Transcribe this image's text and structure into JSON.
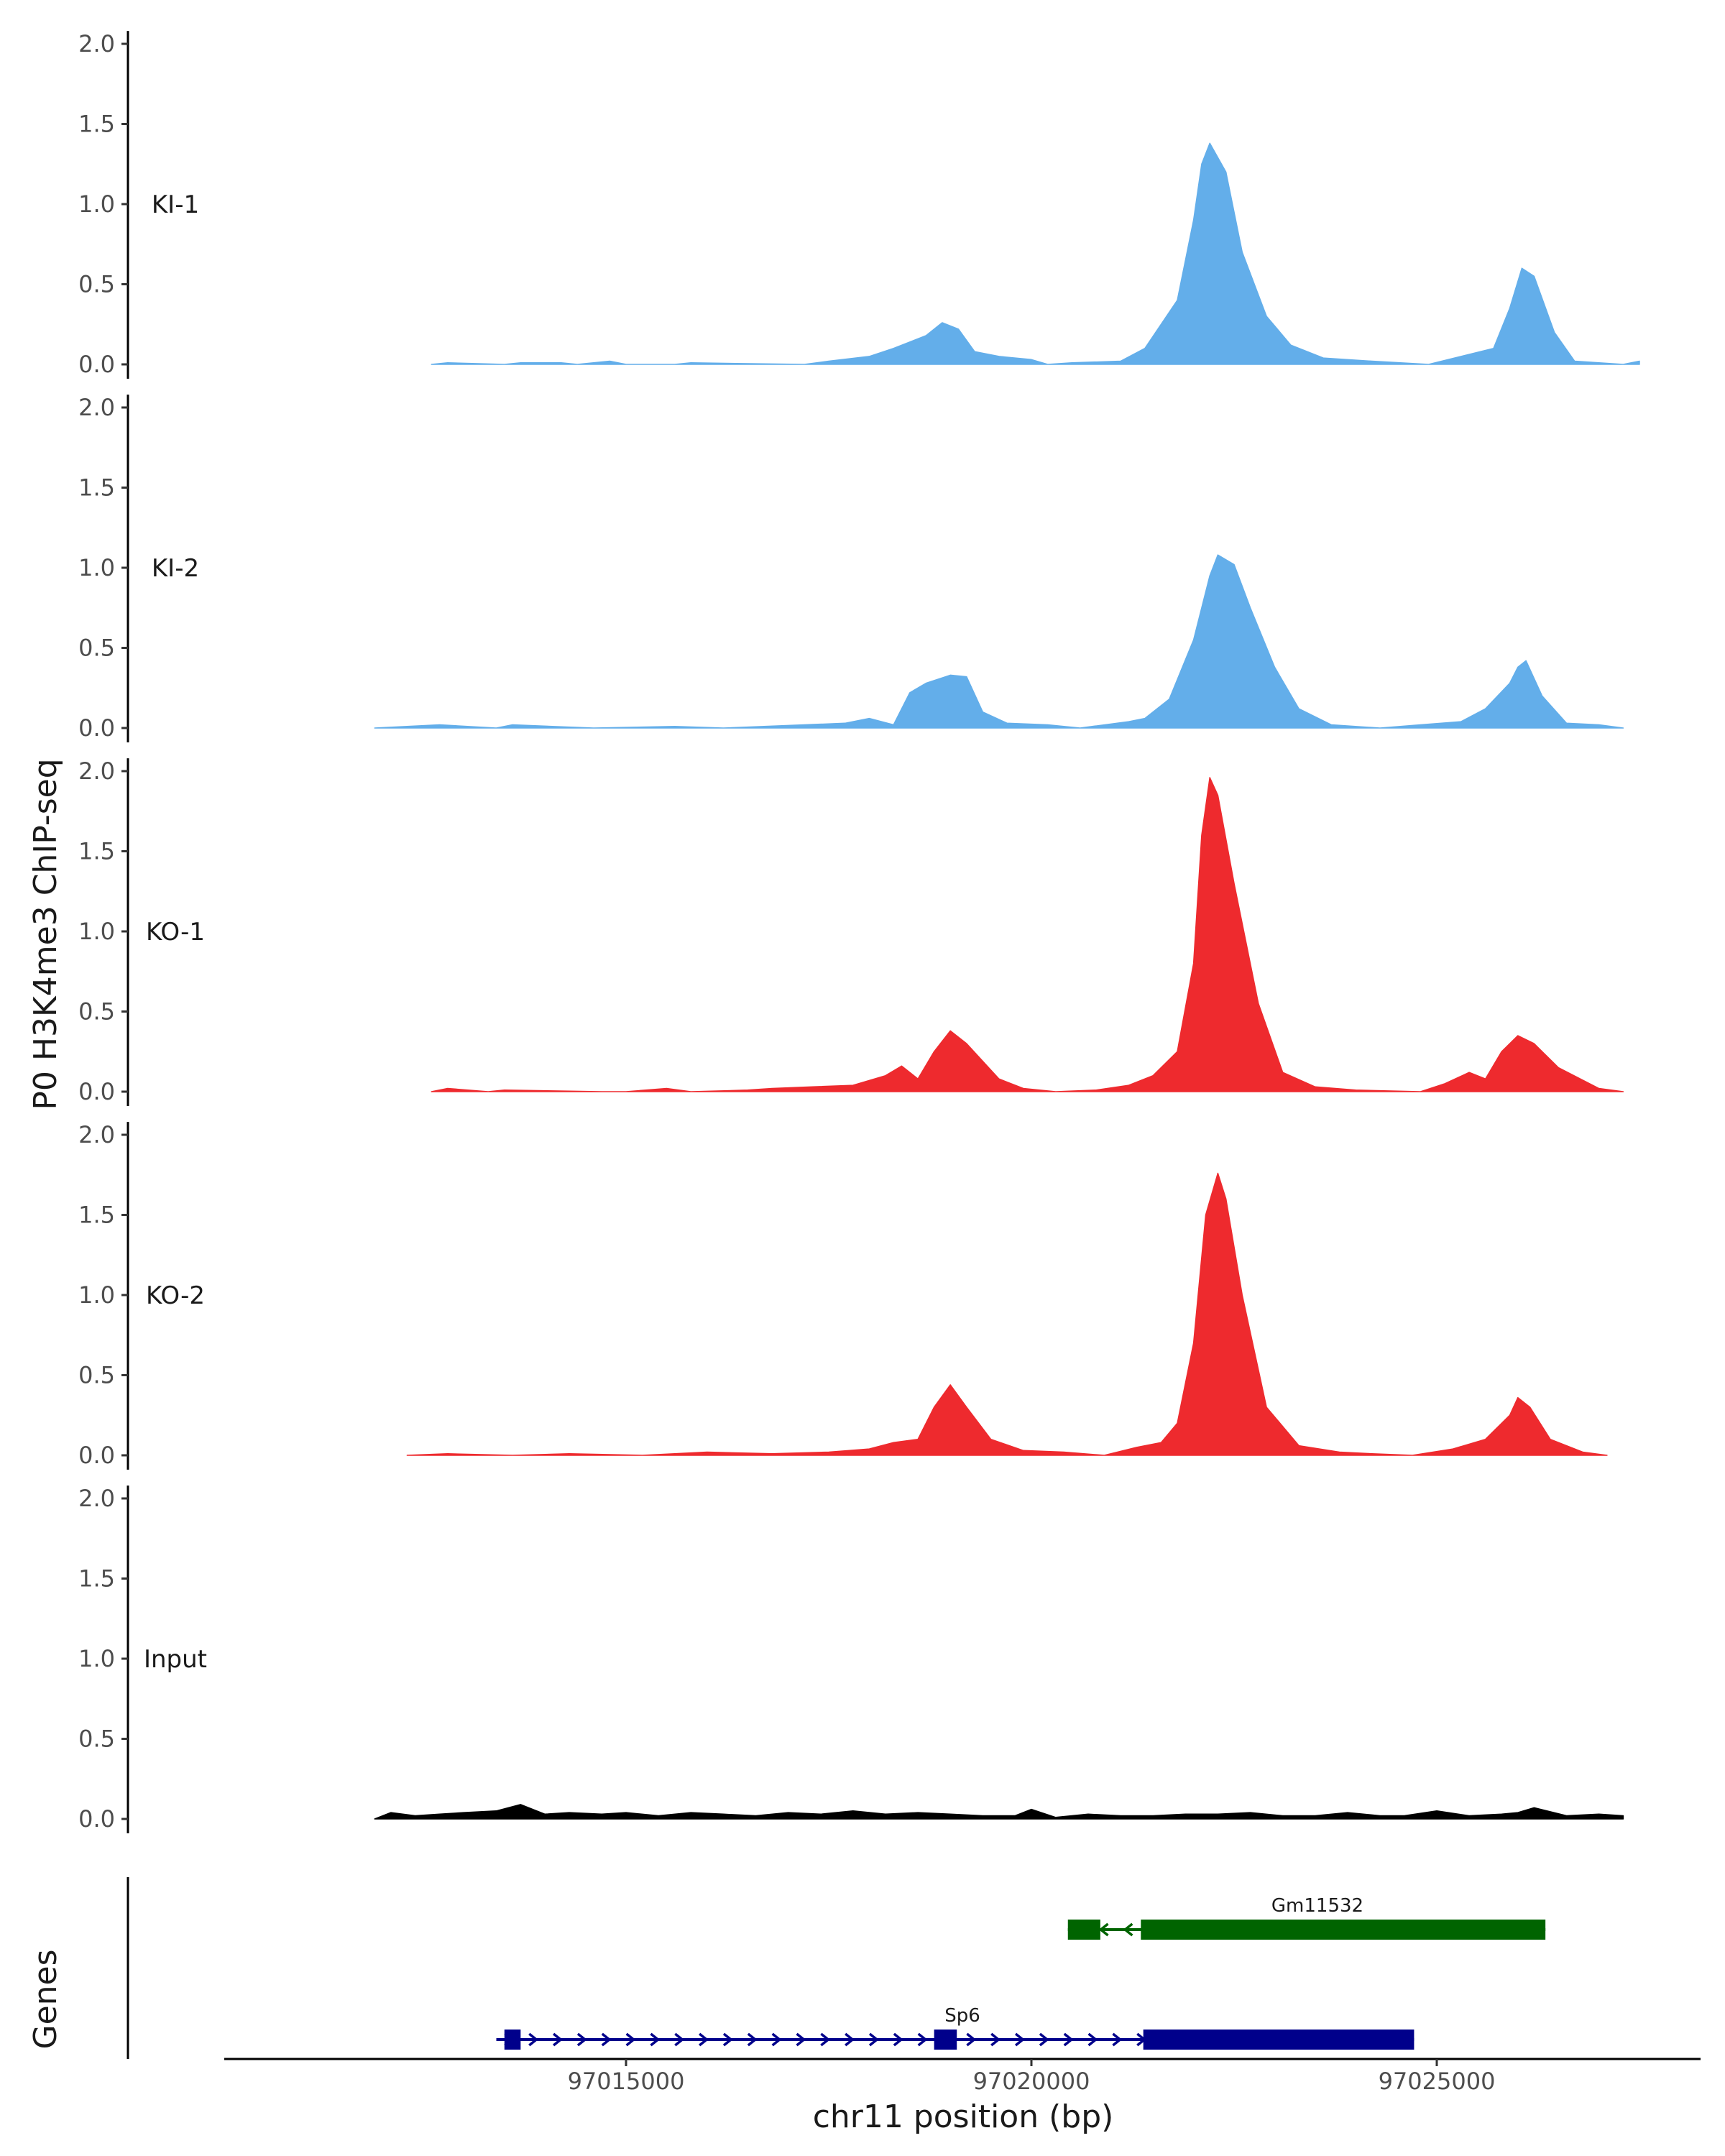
{
  "chart_data": {
    "type": "area",
    "title": "",
    "ylabel": "P0 H3K4me3 ChIP-seq",
    "xlabel": "chr11 position (bp)",
    "genes_label": "Genes",
    "xlim": [
      97010500,
      97028500
    ],
    "ylim": [
      0,
      2.0
    ],
    "yticks": [
      "0.0",
      "0.5",
      "1.0",
      "1.5",
      "2.0"
    ],
    "xticks": [
      97015000,
      97020000,
      97025000
    ],
    "xtick_labels": [
      "97015000",
      "97020000",
      "97025000"
    ],
    "colors": {
      "KI": "#63aeea",
      "KO": "#ee2a2e",
      "Input": "#000000",
      "gene_sp6": "#00008b",
      "gene_gm": "#006400"
    },
    "tracks": [
      {
        "name": "KI-1",
        "color": "#63aeea",
        "x": [
          97012600,
          97012800,
          97013500,
          97013700,
          97014200,
          97014400,
          97014800,
          97015000,
          97015600,
          97015800,
          97017200,
          97017500,
          97018000,
          97018300,
          97018700,
          97018900,
          97019100,
          97019300,
          97019600,
          97020000,
          97020200,
          97020500,
          97021100,
          97021400,
          97021800,
          97022000,
          97022100,
          97022200,
          97022400,
          97022600,
          97022900,
          97023200,
          97023600,
          97024200,
          97024900,
          97025300,
          97025700,
          97025900,
          97026050,
          97026200,
          97026450,
          97026700,
          97027300,
          97027500
        ],
        "y": [
          0.0,
          0.01,
          0.0,
          0.01,
          0.01,
          0.0,
          0.02,
          0.0,
          0.0,
          0.01,
          0.0,
          0.02,
          0.05,
          0.1,
          0.18,
          0.26,
          0.22,
          0.08,
          0.05,
          0.03,
          0.0,
          0.01,
          0.02,
          0.1,
          0.4,
          0.9,
          1.25,
          1.38,
          1.2,
          0.7,
          0.3,
          0.12,
          0.04,
          0.02,
          0.0,
          0.05,
          0.1,
          0.35,
          0.6,
          0.55,
          0.2,
          0.02,
          0.0,
          0.02
        ]
      },
      {
        "name": "KI-2",
        "color": "#63aeea",
        "x": [
          97011900,
          97012300,
          97012700,
          97013400,
          97013600,
          97014600,
          97015600,
          97016200,
          97017200,
          97017700,
          97018000,
          97018300,
          97018500,
          97018700,
          97019000,
          97019200,
          97019400,
          97019700,
          97020200,
          97020600,
          97021200,
          97021400,
          97021700,
          97022000,
          97022200,
          97022300,
          97022500,
          97022700,
          97023000,
          97023300,
          97023700,
          97024300,
          97024800,
          97025300,
          97025600,
          97025900,
          97026000,
          97026100,
          97026300,
          97026600,
          97027000,
          97027300
        ],
        "y": [
          0.0,
          0.01,
          0.02,
          0.0,
          0.02,
          0.0,
          0.01,
          0.0,
          0.02,
          0.03,
          0.06,
          0.02,
          0.22,
          0.28,
          0.33,
          0.32,
          0.1,
          0.03,
          0.02,
          0.0,
          0.04,
          0.06,
          0.18,
          0.55,
          0.95,
          1.08,
          1.02,
          0.75,
          0.38,
          0.12,
          0.02,
          0.0,
          0.02,
          0.04,
          0.12,
          0.28,
          0.38,
          0.42,
          0.2,
          0.03,
          0.02,
          0.0
        ]
      },
      {
        "name": "KO-1",
        "color": "#ee2a2e",
        "x": [
          97012600,
          97012800,
          97013300,
          97013500,
          97014700,
          97015000,
          97015500,
          97015800,
          97016500,
          97016800,
          97017300,
          97017800,
          97018200,
          97018400,
          97018600,
          97018800,
          97019000,
          97019200,
          97019600,
          97019900,
          97020300,
          97020800,
          97021200,
          97021500,
          97021800,
          97022000,
          97022100,
          97022200,
          97022300,
          97022500,
          97022800,
          97023100,
          97023500,
          97024000,
          97024800,
          97025100,
          97025400,
          97025600,
          97025800,
          97026000,
          97026200,
          97026500,
          97027000,
          97027300
        ],
        "y": [
          0.0,
          0.02,
          0.0,
          0.01,
          0.0,
          0.0,
          0.02,
          0.0,
          0.01,
          0.02,
          0.03,
          0.04,
          0.1,
          0.16,
          0.08,
          0.25,
          0.38,
          0.3,
          0.08,
          0.02,
          0.0,
          0.01,
          0.04,
          0.1,
          0.25,
          0.8,
          1.6,
          1.96,
          1.85,
          1.3,
          0.55,
          0.12,
          0.03,
          0.01,
          0.0,
          0.05,
          0.12,
          0.08,
          0.25,
          0.35,
          0.3,
          0.15,
          0.02,
          0.0
        ]
      },
      {
        "name": "KO-2",
        "color": "#ee2a2e",
        "x": [
          97012300,
          97012800,
          97013600,
          97014300,
          97015200,
          97016000,
          97016800,
          97017500,
          97018000,
          97018300,
          97018600,
          97018800,
          97019000,
          97019200,
          97019500,
          97019900,
          97020400,
          97020900,
          97021300,
          97021600,
          97021800,
          97022000,
          97022150,
          97022300,
          97022400,
          97022600,
          97022900,
          97023300,
          97023800,
          97024200,
          97024700,
          97025200,
          97025600,
          97025900,
          97026000,
          97026150,
          97026400,
          97026800,
          97027100
        ],
        "y": [
          0.0,
          0.01,
          0.0,
          0.01,
          0.0,
          0.02,
          0.01,
          0.02,
          0.04,
          0.08,
          0.1,
          0.3,
          0.44,
          0.3,
          0.1,
          0.03,
          0.02,
          0.0,
          0.05,
          0.08,
          0.2,
          0.7,
          1.5,
          1.76,
          1.6,
          1.0,
          0.3,
          0.06,
          0.02,
          0.01,
          0.0,
          0.04,
          0.1,
          0.25,
          0.36,
          0.3,
          0.1,
          0.02,
          0.0
        ]
      },
      {
        "name": "Input",
        "color": "#000000",
        "x": [
          97011900,
          97012100,
          97012400,
          97012700,
          97013000,
          97013400,
          97013700,
          97014000,
          97014300,
          97014700,
          97015000,
          97015400,
          97015800,
          97016200,
          97016600,
          97017000,
          97017400,
          97017800,
          97018200,
          97018600,
          97019000,
          97019400,
          97019800,
          97020000,
          97020300,
          97020700,
          97021100,
          97021500,
          97021900,
          97022300,
          97022700,
          97023100,
          97023500,
          97023900,
          97024300,
          97024600,
          97025000,
          97025400,
          97025800,
          97026000,
          97026200,
          97026600,
          97027000,
          97027300
        ],
        "y": [
          0.0,
          0.04,
          0.02,
          0.03,
          0.04,
          0.05,
          0.09,
          0.03,
          0.04,
          0.03,
          0.04,
          0.02,
          0.04,
          0.03,
          0.02,
          0.04,
          0.03,
          0.05,
          0.03,
          0.04,
          0.03,
          0.02,
          0.02,
          0.06,
          0.01,
          0.03,
          0.02,
          0.02,
          0.03,
          0.03,
          0.04,
          0.02,
          0.02,
          0.04,
          0.02,
          0.02,
          0.05,
          0.02,
          0.03,
          0.04,
          0.07,
          0.02,
          0.03,
          0.02
        ]
      }
    ],
    "genes": [
      {
        "name": "Gm11532",
        "strand": "-",
        "color": "#006400",
        "start": 97020450,
        "end": 97026340,
        "exons": [
          [
            97020450,
            97020850,
            "thick"
          ],
          [
            97021350,
            97026340,
            "thick"
          ]
        ]
      },
      {
        "name": "Sp6",
        "strand": "+",
        "color": "#00008b",
        "start": 97013400,
        "end": 97024720,
        "exons": [
          [
            97013500,
            97013700,
            "thick"
          ],
          [
            97018800,
            97019080,
            "thick"
          ],
          [
            97021380,
            97024720,
            "thick"
          ]
        ]
      }
    ]
  }
}
